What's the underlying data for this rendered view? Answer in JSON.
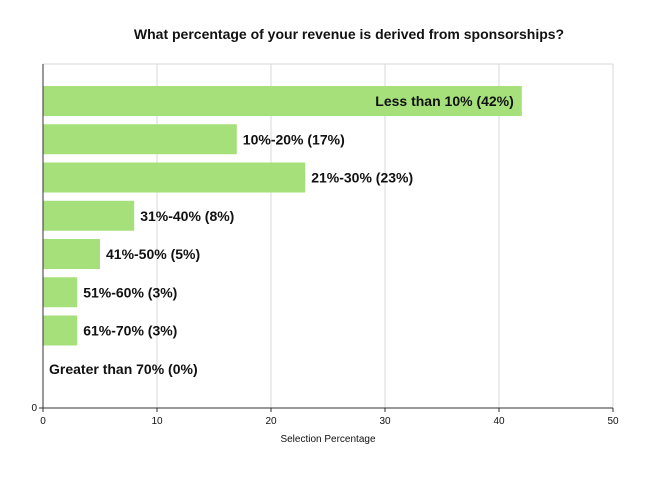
{
  "chart_data": {
    "type": "bar",
    "orientation": "horizontal",
    "title": "What percentage of your revenue is derived from sponsorships?",
    "xlabel": "Selection Percentage",
    "ylabel": "",
    "xlim": [
      0,
      50
    ],
    "xticks": [
      0,
      10,
      20,
      30,
      40,
      50
    ],
    "yticks": [
      0
    ],
    "grid": true,
    "categories": [
      "Less than 10%",
      "10%-20%",
      "21%-30%",
      "31%-40%",
      "41%-50%",
      "51%-60%",
      "61%-70%",
      "Greater than 70%"
    ],
    "values": [
      42,
      17,
      23,
      8,
      5,
      3,
      3,
      0
    ],
    "data_labels": [
      "Less than 10% (42%)",
      "10%-20% (17%)",
      "21%-30% (23%)",
      "31%-40% (8%)",
      "41%-50% (5%)",
      "51%-60% (3%)",
      "61%-70% (3%)",
      "Greater than 70% (0%)"
    ],
    "colors": {
      "bar": "#a6e07a",
      "grid": "#d9d9d9",
      "axis": "#333333"
    }
  }
}
